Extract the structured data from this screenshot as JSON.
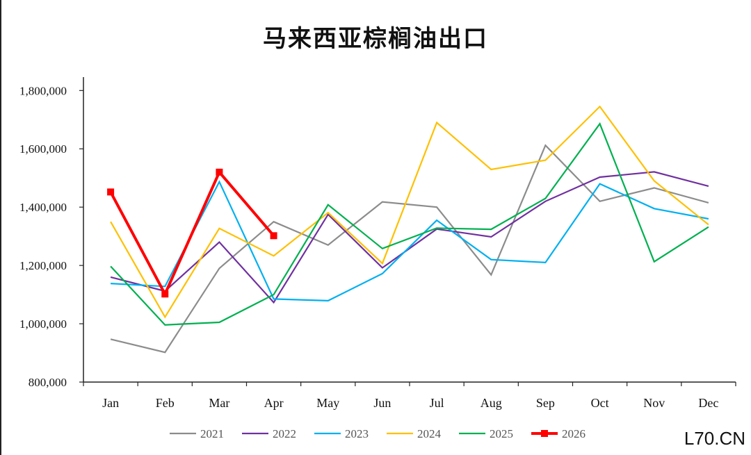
{
  "chart_data": {
    "type": "line",
    "title": "马来西亚棕榈油出口",
    "xlabel": "",
    "ylabel": "",
    "categories": [
      "Jan",
      "Feb",
      "Mar",
      "Apr",
      "May",
      "Jun",
      "Jul",
      "Aug",
      "Sep",
      "Oct",
      "Nov",
      "Dec"
    ],
    "ylim": [
      800000,
      1850000
    ],
    "yticks": [
      800000,
      1000000,
      1200000,
      1400000,
      1600000,
      1800000
    ],
    "ytick_labels": [
      "800,000",
      "1,000,000",
      "1,200,000",
      "1,400,000",
      "1,600,000",
      "1,800,000"
    ],
    "grid": false,
    "legend_position": "bottom",
    "series": [
      {
        "name": "2021",
        "color": "#8c8c8c",
        "markers": false,
        "values": [
          947000,
          902000,
          1190000,
          1350000,
          1270000,
          1418000,
          1400000,
          1168000,
          1612000,
          1420000,
          1466000,
          1415000
        ]
      },
      {
        "name": "2022",
        "color": "#7030a0",
        "markers": false,
        "values": [
          1160000,
          1112000,
          1280000,
          1073000,
          1375000,
          1192000,
          1325000,
          1298000,
          1420000,
          1503000,
          1521000,
          1472000
        ]
      },
      {
        "name": "2023",
        "color": "#00b0f0",
        "markers": false,
        "values": [
          1138000,
          1128000,
          1487000,
          1085000,
          1079000,
          1172000,
          1355000,
          1220000,
          1210000,
          1480000,
          1395000,
          1360000
        ]
      },
      {
        "name": "2024",
        "color": "#ffc000",
        "markers": false,
        "values": [
          1350000,
          1023000,
          1327000,
          1233000,
          1381000,
          1207000,
          1690000,
          1529000,
          1561000,
          1745000,
          1490000,
          1340000
        ]
      },
      {
        "name": "2025",
        "color": "#00b050",
        "markers": false,
        "values": [
          1197000,
          996000,
          1005000,
          1100000,
          1408000,
          1258000,
          1328000,
          1324000,
          1430000,
          1686000,
          1213000,
          1332000
        ]
      },
      {
        "name": "2026",
        "color": "#ff0000",
        "markers": true,
        "values": [
          1452000,
          1102000,
          1520000,
          1302000,
          null,
          null,
          null,
          null,
          null,
          null,
          null,
          null
        ]
      }
    ]
  },
  "watermark": "L70.CN"
}
